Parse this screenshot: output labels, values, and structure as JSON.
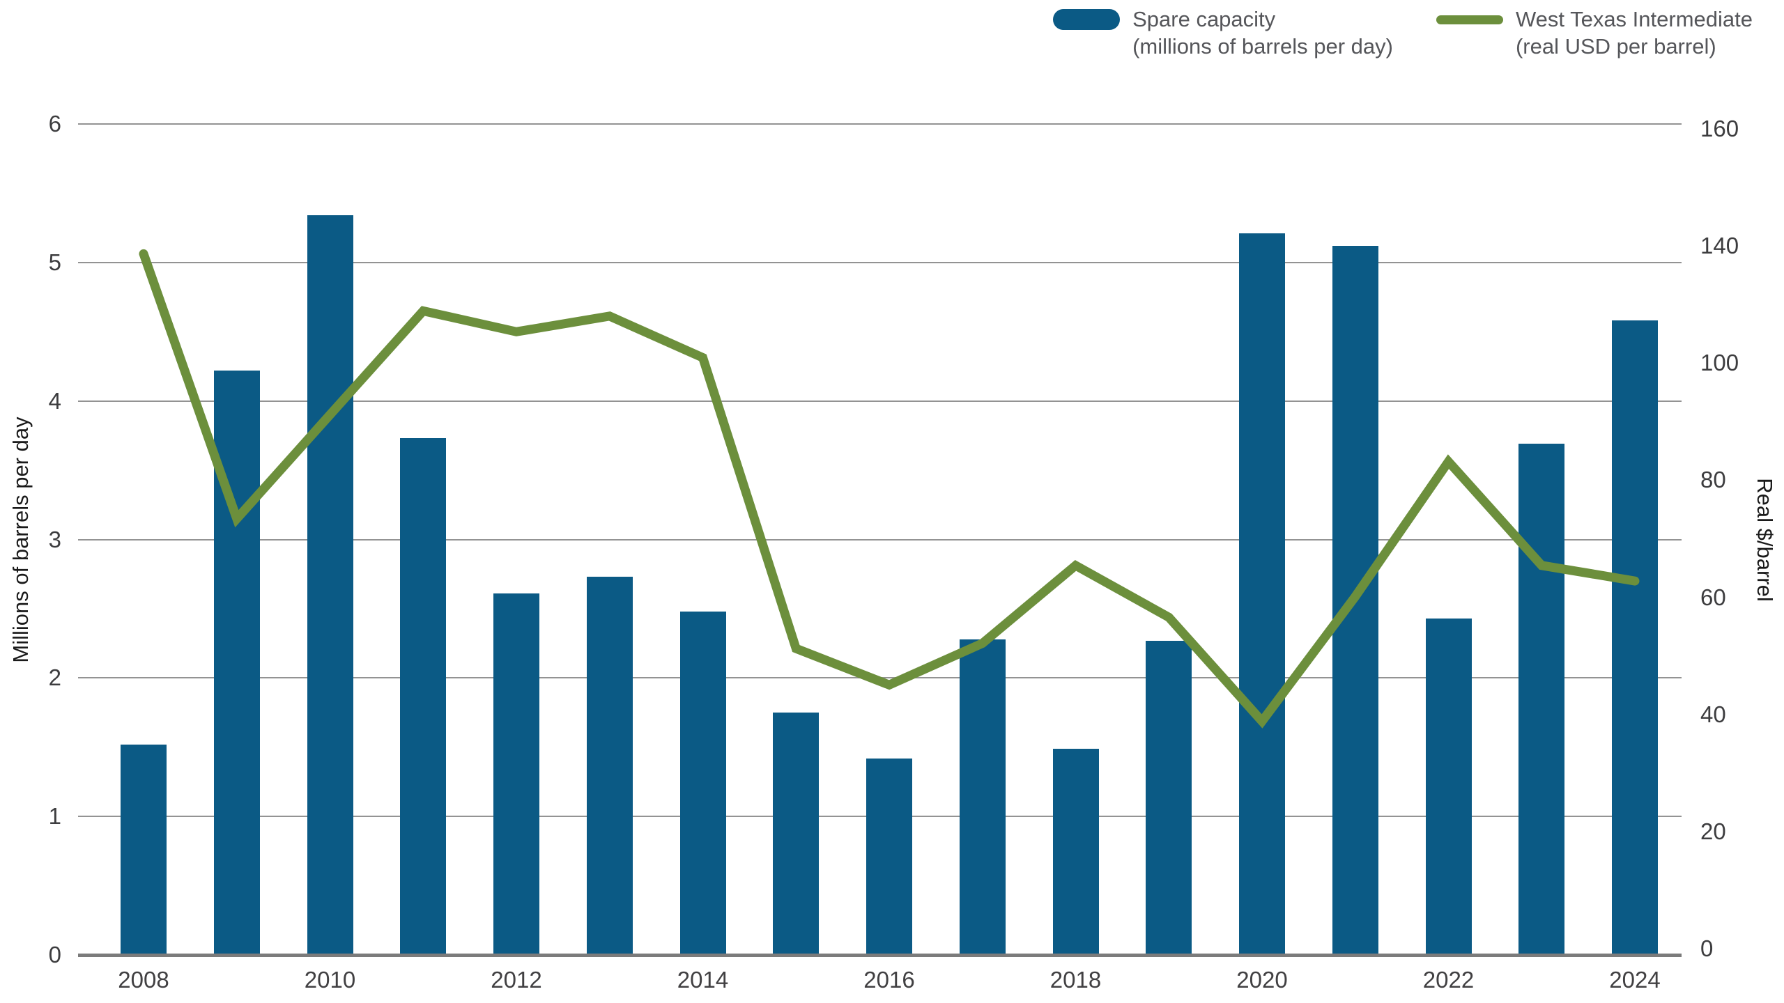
{
  "legend": {
    "items": [
      {
        "label_line1": "Spare capacity",
        "label_line2": "(millions of barrels per day)",
        "swatch": "bar-swatch",
        "color": "#0B5A85"
      },
      {
        "label_line1": "West Texas Intermediate",
        "label_line2": "(real USD per barrel)",
        "swatch": "line-swatch",
        "color": "#6C8F3C"
      }
    ]
  },
  "left_axis": {
    "title": "Millions of barrels per day",
    "ticks": [
      "6",
      "5",
      "4",
      "3",
      "2",
      "1",
      "0"
    ],
    "range": [
      0,
      6
    ]
  },
  "right_axis": {
    "title": "Real $/barrel",
    "ticks": [
      "160",
      "140",
      "100",
      "80",
      "60",
      "40",
      "20",
      "0"
    ],
    "range": [
      0,
      160
    ]
  },
  "x_axis": {
    "labels": [
      "2008",
      "2010",
      "2012",
      "2014",
      "2016",
      "2018",
      "2020",
      "2022",
      "2024"
    ]
  },
  "chart_data": {
    "type": "bar",
    "subtype": "bar+line dual axis",
    "categories": [
      2008,
      2009,
      2010,
      2011,
      2012,
      2013,
      2014,
      2015,
      2016,
      2017,
      2018,
      2019,
      2020,
      2021,
      2022,
      2023,
      2024
    ],
    "series": [
      {
        "name": "Spare capacity (millions of barrels per day)",
        "type": "bar",
        "axis": "left",
        "color": "#0B5A85",
        "values": [
          1.52,
          4.22,
          5.34,
          3.73,
          2.61,
          2.73,
          2.48,
          1.75,
          1.42,
          2.28,
          1.49,
          2.27,
          5.21,
          5.12,
          2.43,
          3.69,
          4.58
        ]
      },
      {
        "name": "West Texas Intermediate (real USD per barrel)",
        "type": "line",
        "axis": "right",
        "color": "#6C8F3C",
        "values": [
          135,
          84,
          104,
          124,
          120,
          123,
          115,
          59,
          52,
          60,
          75,
          65,
          45,
          69,
          95,
          75,
          72
        ]
      }
    ],
    "left_ylim": [
      0,
      6
    ],
    "right_ylim": [
      0,
      160
    ],
    "grid": "horizontal",
    "legend_position": "top-right"
  },
  "colors": {
    "bar": "#0B5A85",
    "line": "#6C8F3C",
    "gridline": "#939393",
    "axis_line": "#7b7b7b",
    "tick_text": "#3d3d3f",
    "legend_text": "#55565a"
  }
}
